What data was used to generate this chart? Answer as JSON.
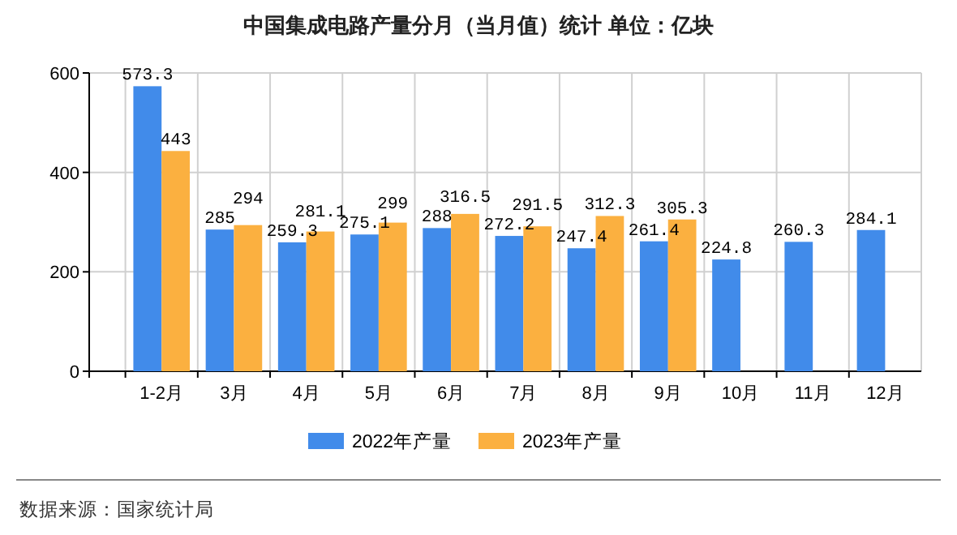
{
  "chart_data": {
    "type": "bar",
    "title": "中国集成电路产量分月（当月值）统计 单位：亿块",
    "categories": [
      "1-2月",
      "3月",
      "4月",
      "5月",
      "6月",
      "7月",
      "8月",
      "9月",
      "10月",
      "11月",
      "12月"
    ],
    "series": [
      {
        "name": "2022年产量",
        "color": "#418bea",
        "values": [
          573.3,
          285,
          259.3,
          275.1,
          288,
          272.2,
          247.4,
          261.4,
          224.8,
          260.3,
          284.1
        ]
      },
      {
        "name": "2023年产量",
        "color": "#fbb040",
        "values": [
          443,
          294,
          281.1,
          299,
          316.5,
          291.5,
          312.3,
          305.3,
          null,
          null,
          null
        ]
      }
    ],
    "ylim": [
      0,
      600
    ],
    "yticks": [
      0,
      200,
      400,
      600
    ],
    "grid": true,
    "legend": "bottom",
    "data_labels": true,
    "annotations": [
      "数据来源：国家统计局"
    ]
  }
}
